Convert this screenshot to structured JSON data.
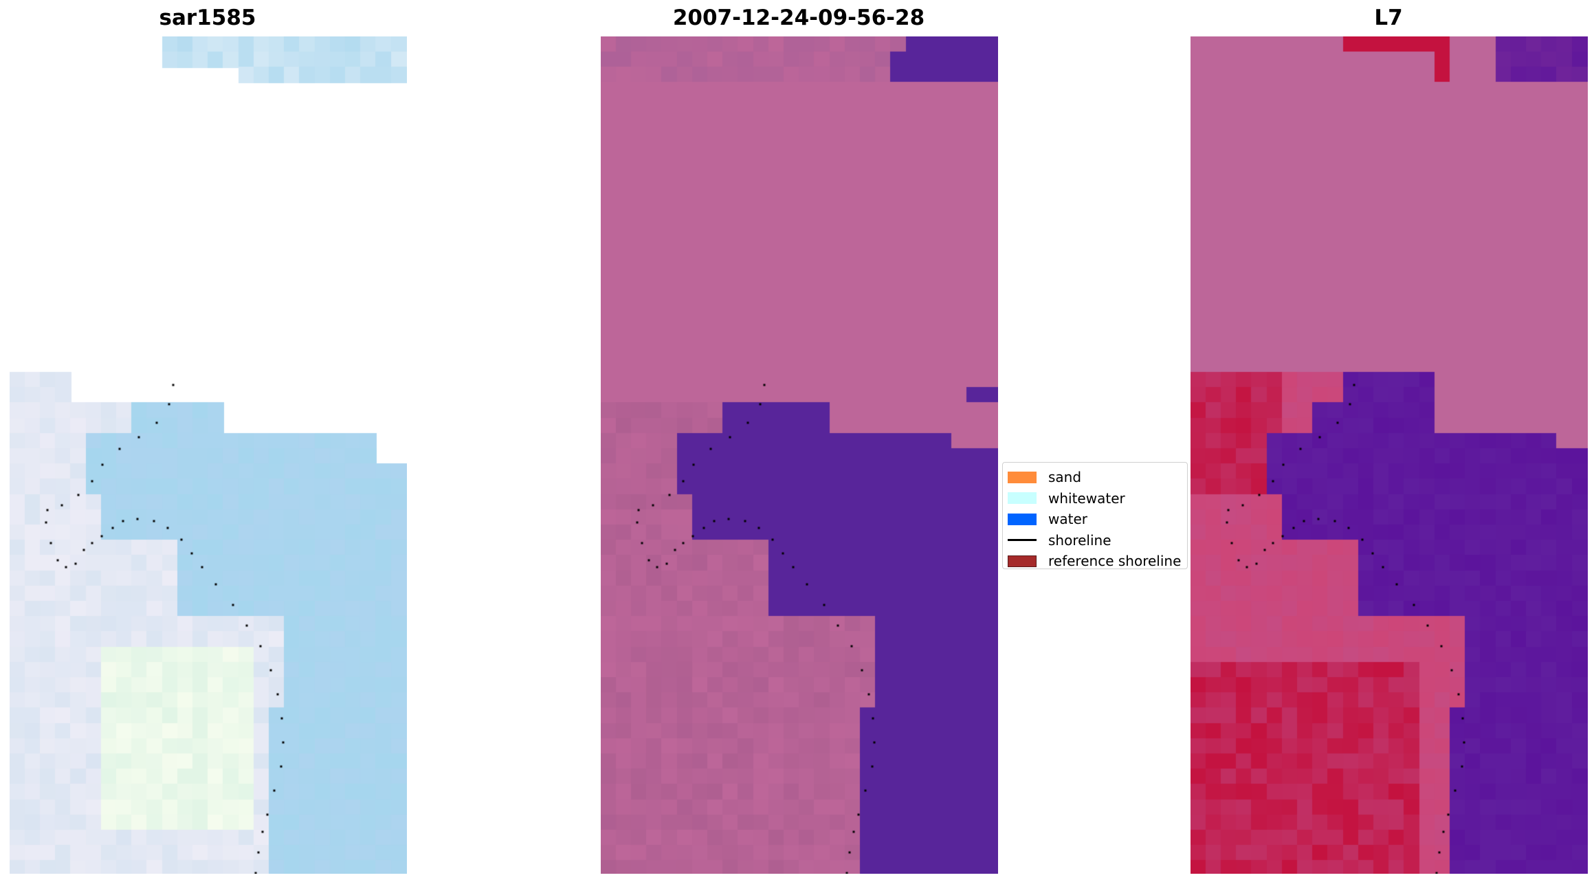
{
  "panels": [
    {
      "title": "sar1585",
      "colormap": "rgb"
    },
    {
      "title": "2007-12-24-09-56-28",
      "colormap": "classified"
    },
    {
      "title": "L7",
      "colormap": "index"
    }
  ],
  "legend": [
    {
      "label": "sand",
      "type": "patch",
      "color": "#ff8c3a",
      "edge": "#ff8c3a"
    },
    {
      "label": "whitewater",
      "type": "patch",
      "color": "#c8ffff",
      "edge": "#c8ffff"
    },
    {
      "label": "water",
      "type": "patch",
      "color": "#0064ff",
      "edge": "#0064ff"
    },
    {
      "label": "shoreline",
      "type": "line",
      "color": "#000000"
    },
    {
      "label": "reference shoreline",
      "type": "patch",
      "color": "#a52a2a",
      "edge": "#5a1a1a"
    }
  ],
  "colors": {
    "land_pink": "#bd6699",
    "water_purple": "#58259a",
    "index_red": "#c4123f",
    "index_purple": "#5c149c",
    "rgb_blue": "#a6d6ee",
    "shoreline_dots": "#000000"
  }
}
